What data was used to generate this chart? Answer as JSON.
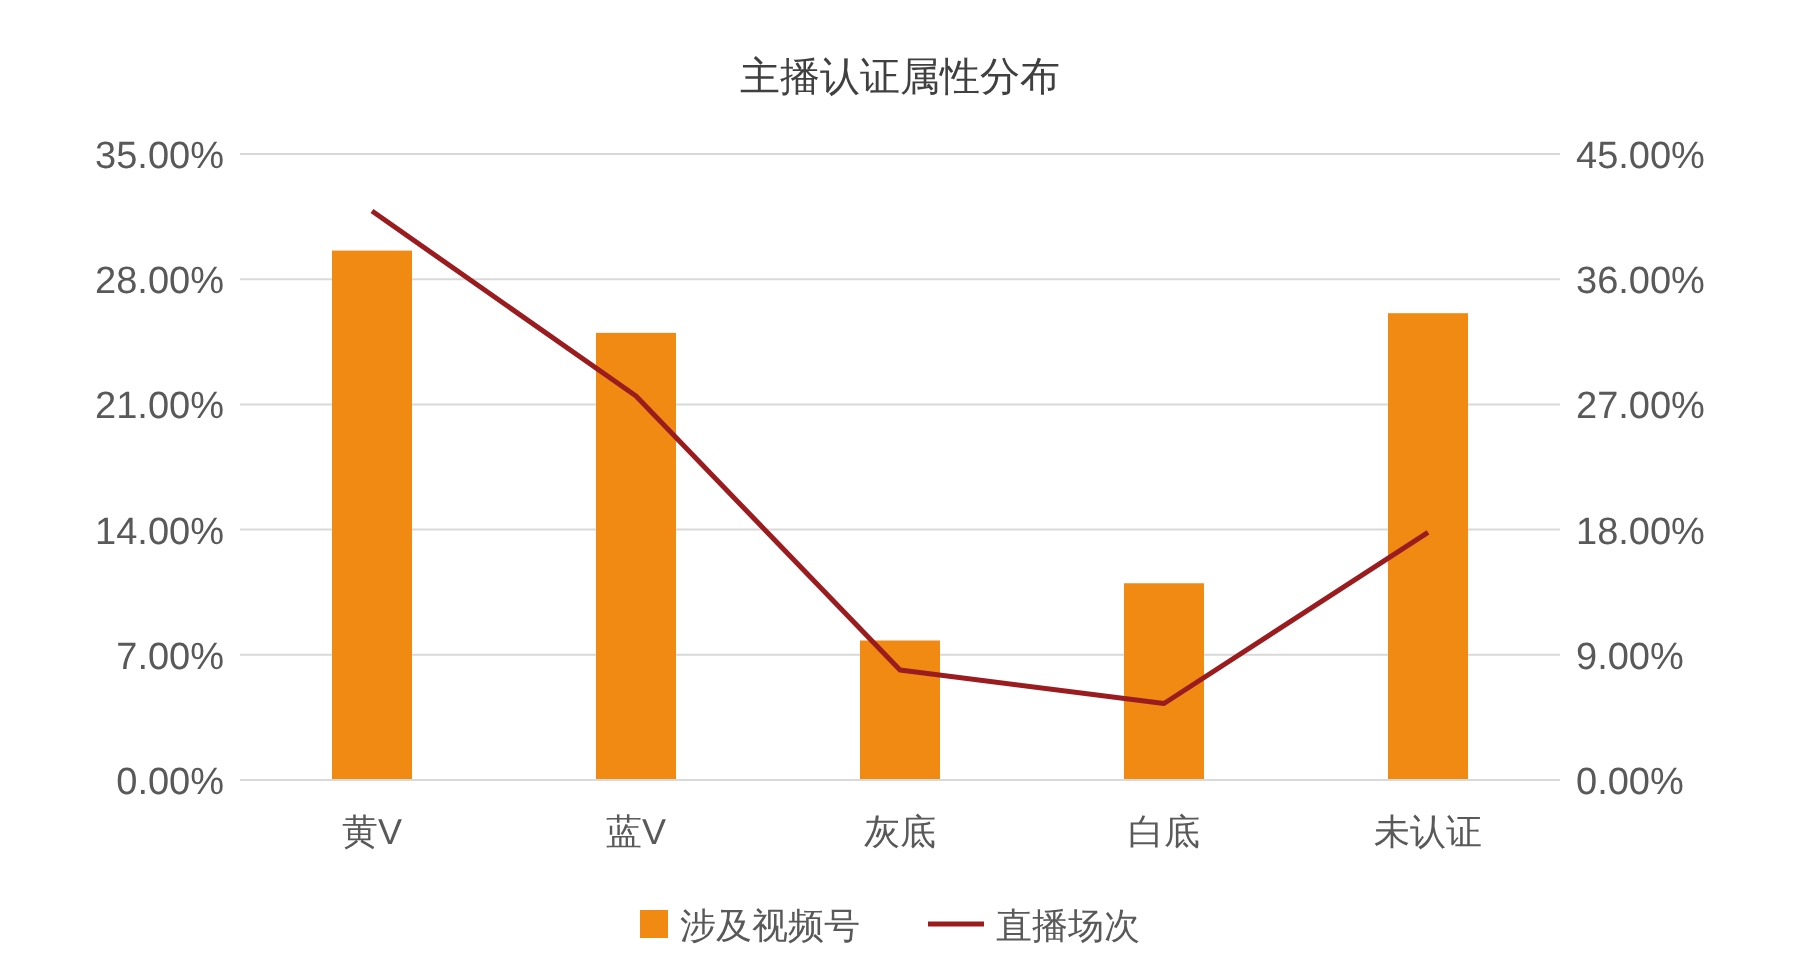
{
  "chart_data": {
    "type": "bar",
    "title": "主播认证属性分布",
    "categories": [
      "黄V",
      "蓝V",
      "灰底",
      "白底",
      "未认证"
    ],
    "series": [
      {
        "name": "涉及视频号",
        "color": "#f08a12",
        "values": [
          29.6,
          25.0,
          7.8,
          11.0,
          26.1
        ]
      },
      {
        "name": "直播场次",
        "type": "line",
        "axis": "y2",
        "color": "#9b1c1f",
        "values": [
          40.9,
          27.6,
          7.9,
          5.5,
          17.8
        ]
      }
    ],
    "ylim": [
      0,
      35
    ],
    "yticks": [
      {
        "value": 0,
        "label": "0.00%"
      },
      {
        "value": 7,
        "label": "7.00%"
      },
      {
        "value": 14,
        "label": "14.00%"
      },
      {
        "value": 21,
        "label": "21.00%"
      },
      {
        "value": 28,
        "label": "28.00%"
      },
      {
        "value": 35,
        "label": "35.00%"
      }
    ],
    "y2lim": [
      0,
      45
    ],
    "y2ticks": [
      {
        "value": 0,
        "label": "0.00%"
      },
      {
        "value": 9,
        "label": "9.00%"
      },
      {
        "value": 18,
        "label": "18.00%"
      },
      {
        "value": 27,
        "label": "27.00%"
      },
      {
        "value": 36,
        "label": "36.00%"
      },
      {
        "value": 45,
        "label": "45.00%"
      }
    ],
    "grid": "y",
    "legend": "bottom",
    "marker": "none"
  }
}
